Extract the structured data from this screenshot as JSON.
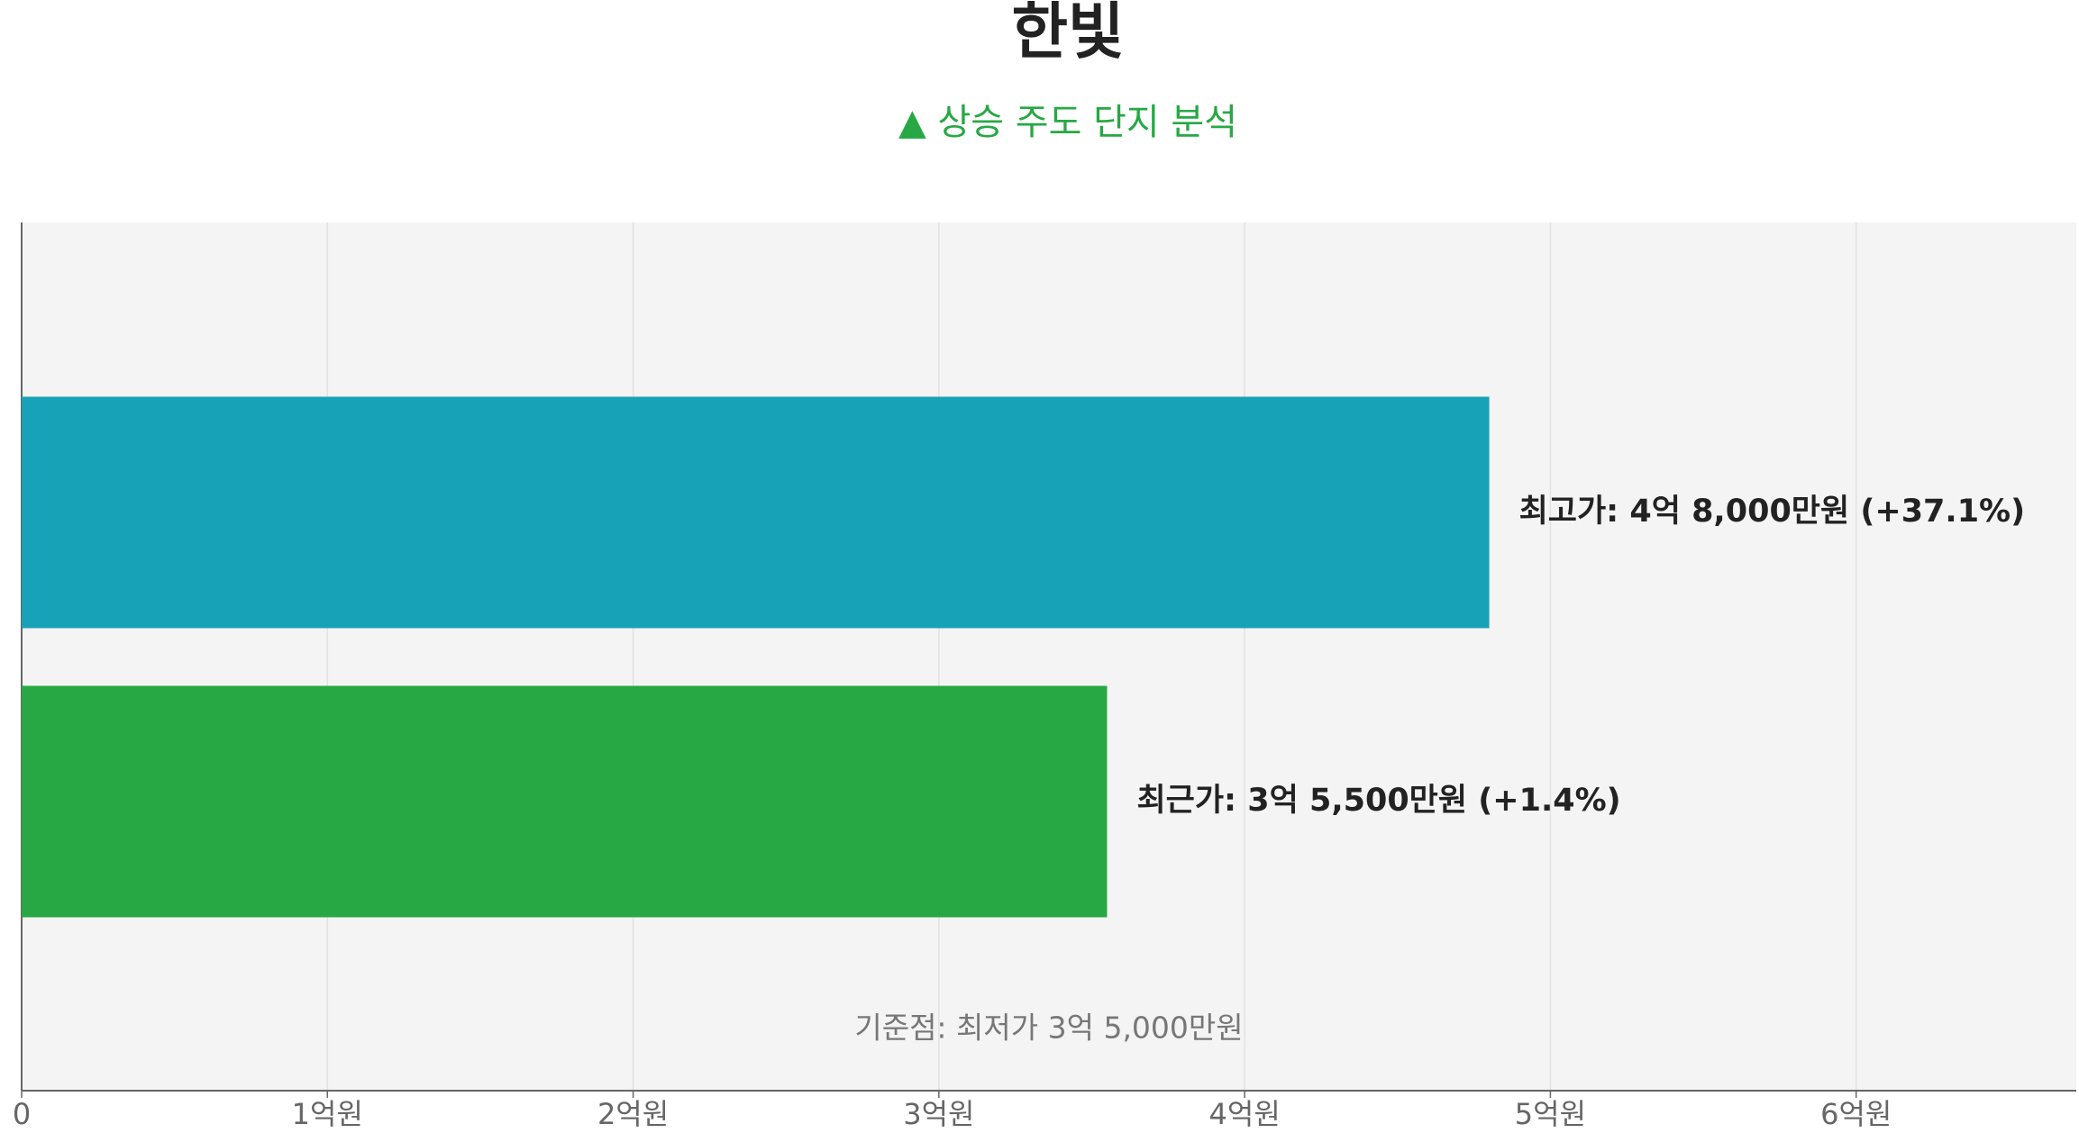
{
  "chart_data": {
    "type": "hbar",
    "title": "한빛",
    "subtitle": "▲ 상승 주도 단지 분석",
    "categories": [
      null,
      null
    ],
    "values": [
      4.8,
      3.55
    ],
    "value_labels": [
      "최고가: 4억 8,000만원 (+37.1%)",
      "최근가: 3억 5,500만원 (+1.4%)"
    ],
    "colors": [
      "#17a2b8",
      "#28a745"
    ],
    "annotation": "기준점: 최저가 3억 5,000만원",
    "xlim": [
      0,
      6.72
    ],
    "xticks": [
      0,
      {
        "value": 1,
        "label": "1억원"
      },
      {
        "value": 2,
        "label": "2억원"
      },
      {
        "value": 3,
        "label": "3억원"
      },
      {
        "value": 4,
        "label": "4억원"
      },
      {
        "value": 5,
        "label": "5억원"
      },
      {
        "value": 6,
        "label": "6억원"
      }
    ],
    "grid": true
  }
}
